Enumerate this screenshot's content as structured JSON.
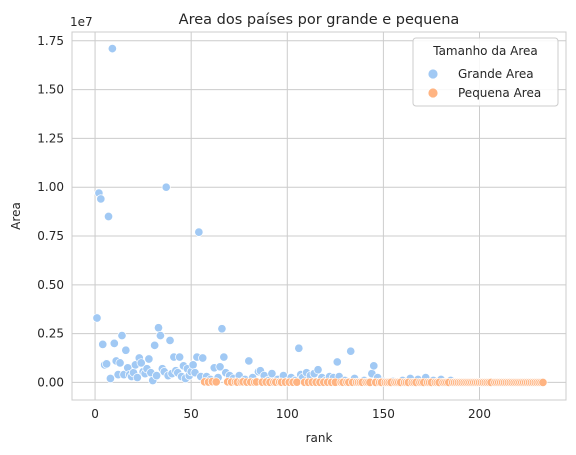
{
  "chart_data": {
    "type": "scatter",
    "title": "Area dos países por grande e pequena",
    "xlabel": "rank",
    "ylabel": "Area",
    "y_multiplier_label": "1e7",
    "xlim": [
      -12,
      245
    ],
    "ylim": [
      -900000,
      17950000
    ],
    "x_ticks": [
      0,
      50,
      100,
      150,
      200
    ],
    "x_tick_labels": [
      "0",
      "50",
      "100",
      "150",
      "200"
    ],
    "y_ticks": [
      0,
      2500000,
      5000000,
      7500000,
      10000000,
      12500000,
      15000000,
      17500000
    ],
    "y_tick_labels": [
      "0.00",
      "0.25",
      "0.50",
      "0.75",
      "1.00",
      "1.25",
      "1.50",
      "1.75"
    ],
    "grid": true,
    "legend": {
      "title": "Tamanho da Area",
      "placement": "top-right"
    },
    "series": [
      {
        "name": "Grande Area",
        "color": "#a1c9f4",
        "x": [
          1,
          2,
          3,
          4,
          5,
          6,
          7,
          8,
          9,
          10,
          11,
          12,
          13,
          14,
          15,
          16,
          17,
          18,
          19,
          20,
          21,
          22,
          23,
          24,
          25,
          26,
          27,
          28,
          29,
          30,
          31,
          32,
          33,
          34,
          35,
          36,
          37,
          38,
          39,
          40,
          41,
          42,
          43,
          44,
          45,
          46,
          47,
          48,
          49,
          50,
          51,
          52,
          53,
          54,
          55,
          56,
          58,
          60,
          62,
          64,
          65,
          66,
          67,
          68,
          70,
          72,
          75,
          78,
          80,
          82,
          85,
          86,
          88,
          90,
          92,
          95,
          98,
          100,
          102,
          104,
          106,
          107,
          108,
          110,
          112,
          114,
          116,
          118,
          120,
          122,
          124,
          126,
          127,
          130,
          133,
          135,
          140,
          144,
          145,
          147,
          150,
          155,
          160,
          164,
          168,
          172,
          176,
          180,
          185
        ],
        "y": [
          3300000,
          9700000,
          9400000,
          1950000,
          900000,
          950000,
          8500000,
          200000,
          17100000,
          2000000,
          1100000,
          400000,
          1000000,
          2400000,
          400000,
          1650000,
          750000,
          400000,
          300000,
          500000,
          900000,
          250000,
          1250000,
          1000000,
          550000,
          450000,
          700000,
          1200000,
          500000,
          100000,
          1900000,
          350000,
          2800000,
          2400000,
          700000,
          550000,
          10000000,
          350000,
          2150000,
          450000,
          1300000,
          600000,
          500000,
          1300000,
          300000,
          850000,
          200000,
          700000,
          350000,
          550000,
          900000,
          500000,
          1300000,
          7700000,
          300000,
          1250000,
          300000,
          150000,
          750000,
          250000,
          800000,
          2750000,
          1300000,
          500000,
          350000,
          200000,
          350000,
          150000,
          1100000,
          250000,
          550000,
          600000,
          350000,
          100000,
          450000,
          150000,
          350000,
          50000,
          250000,
          100000,
          1750000,
          400000,
          250000,
          500000,
          350000,
          450000,
          650000,
          250000,
          100000,
          300000,
          250000,
          1050000,
          300000,
          100000,
          1600000,
          200000,
          100000,
          450000,
          850000,
          250000,
          50000,
          50000,
          100000,
          200000,
          150000,
          250000,
          100000,
          150000,
          100000
        ]
      },
      {
        "name": "Pequena Area",
        "color": "#ffb482",
        "x": [
          57,
          59,
          61,
          63,
          69,
          71,
          73,
          74,
          76,
          77,
          79,
          81,
          83,
          84,
          87,
          89,
          91,
          93,
          94,
          96,
          97,
          99,
          101,
          103,
          105,
          109,
          111,
          113,
          115,
          117,
          119,
          121,
          123,
          125,
          128,
          129,
          131,
          132,
          134,
          136,
          137,
          138,
          139,
          141,
          142,
          143,
          146,
          148,
          149,
          151,
          152,
          153,
          154,
          156,
          157,
          158,
          159,
          161,
          162,
          163,
          165,
          166,
          167,
          169,
          170,
          171,
          173,
          174,
          175,
          177,
          178,
          179,
          181,
          182,
          183,
          184,
          186,
          187,
          188,
          189,
          190,
          191,
          192,
          193,
          194,
          195,
          196,
          197,
          198,
          199,
          200,
          201,
          202,
          203,
          204,
          205,
          206,
          208,
          209,
          210,
          211,
          212,
          213,
          214,
          215,
          216,
          217,
          218,
          219,
          220,
          221,
          222,
          223,
          224,
          225,
          226,
          227,
          228,
          229,
          230,
          231,
          232,
          233
        ],
        "y": [
          30000,
          20000,
          40000,
          25000,
          30000,
          20000,
          25000,
          15000,
          20000,
          30000,
          15000,
          20000,
          10000,
          25000,
          15000,
          20000,
          10000,
          15000,
          12000,
          20000,
          10000,
          15000,
          12000,
          10000,
          12000,
          10000,
          8000,
          15000,
          10000,
          9000,
          8000,
          12000,
          7000,
          8000,
          9000,
          6000,
          8000,
          7000,
          6000,
          5000,
          6000,
          7000,
          5000,
          6000,
          5000,
          4000,
          4000,
          5000,
          4000,
          3000,
          4000,
          3000,
          3000,
          2500,
          3000,
          2500,
          2000,
          2500,
          2000,
          2000,
          2000,
          1800,
          1500,
          1500,
          1500,
          1200,
          1200,
          1000,
          1000,
          900,
          800,
          800,
          700,
          700,
          600,
          600,
          500,
          500,
          450,
          450,
          400,
          400,
          350,
          350,
          300,
          300,
          300,
          250,
          250,
          200,
          200,
          200,
          180,
          160,
          150,
          140,
          120,
          100,
          90,
          80,
          70,
          60,
          50,
          40,
          35,
          30,
          25,
          20,
          18,
          15,
          12,
          10,
          8,
          6,
          5,
          4,
          3,
          2,
          2,
          1,
          1,
          1,
          1
        ]
      }
    ]
  }
}
